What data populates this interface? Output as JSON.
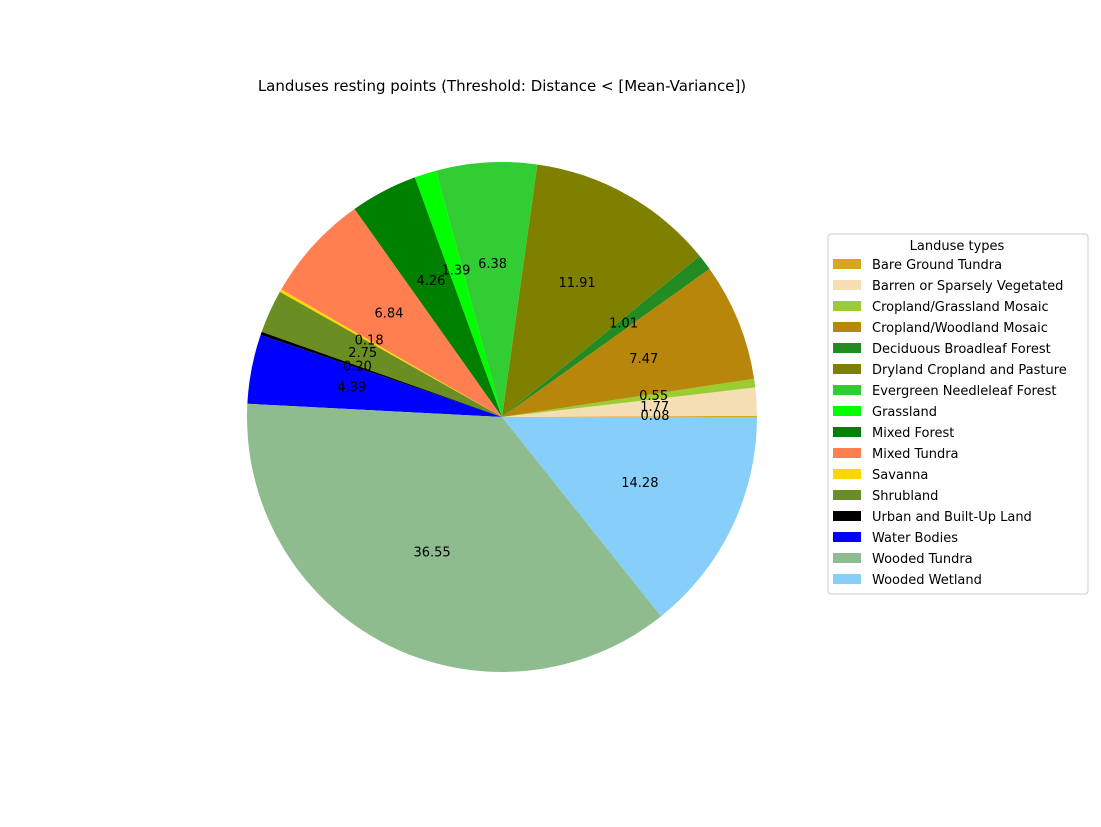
{
  "chart_data": {
    "type": "pie",
    "title": "Landuses resting points (Threshold: Distance < [Mean-Variance])",
    "legend": {
      "title": "Landuse types",
      "placement": "center-right"
    },
    "slices": [
      {
        "name": "Bare Ground Tundra",
        "value": 0.08,
        "label": "0.08",
        "color": "#DAA520"
      },
      {
        "name": "Barren or Sparsely Vegetated",
        "value": 1.77,
        "label": "1.77",
        "color": "#F5DEB3"
      },
      {
        "name": "Cropland/Grassland Mosaic",
        "value": 0.55,
        "label": "0.55",
        "color": "#9ACD32"
      },
      {
        "name": "Cropland/Woodland Mosaic",
        "value": 7.47,
        "label": "7.47",
        "color": "#B8860B"
      },
      {
        "name": "Deciduous Broadleaf Forest",
        "value": 1.01,
        "label": "1.01",
        "color": "#228B22"
      },
      {
        "name": "Dryland Cropland and Pasture",
        "value": 11.91,
        "label": "11.91",
        "color": "#808000"
      },
      {
        "name": "Evergreen Needleleaf Forest",
        "value": 6.38,
        "label": "6.38",
        "color": "#32CD32"
      },
      {
        "name": "Grassland",
        "value": 1.39,
        "label": "1.39",
        "color": "#00FF00"
      },
      {
        "name": "Mixed Forest",
        "value": 4.26,
        "label": "4.26",
        "color": "#008000"
      },
      {
        "name": "Mixed Tundra",
        "value": 6.84,
        "label": "6.84",
        "color": "#FF7F50"
      },
      {
        "name": "Savanna",
        "value": 0.18,
        "label": "0.18",
        "color": "#FFD700"
      },
      {
        "name": "Shrubland",
        "value": 2.75,
        "label": "2.75",
        "color": "#6B8E23"
      },
      {
        "name": "Urban and Built-Up Land",
        "value": 0.2,
        "label": "0.20",
        "color": "#000000"
      },
      {
        "name": "Water Bodies",
        "value": 4.39,
        "label": "4.39",
        "color": "#0000FF"
      },
      {
        "name": "Wooded Tundra",
        "value": 36.55,
        "label": "36.55",
        "color": "#8FBC8F"
      },
      {
        "name": "Wooded Wetland",
        "value": 14.28,
        "label": "14.28",
        "color": "#87CEFA"
      }
    ]
  }
}
